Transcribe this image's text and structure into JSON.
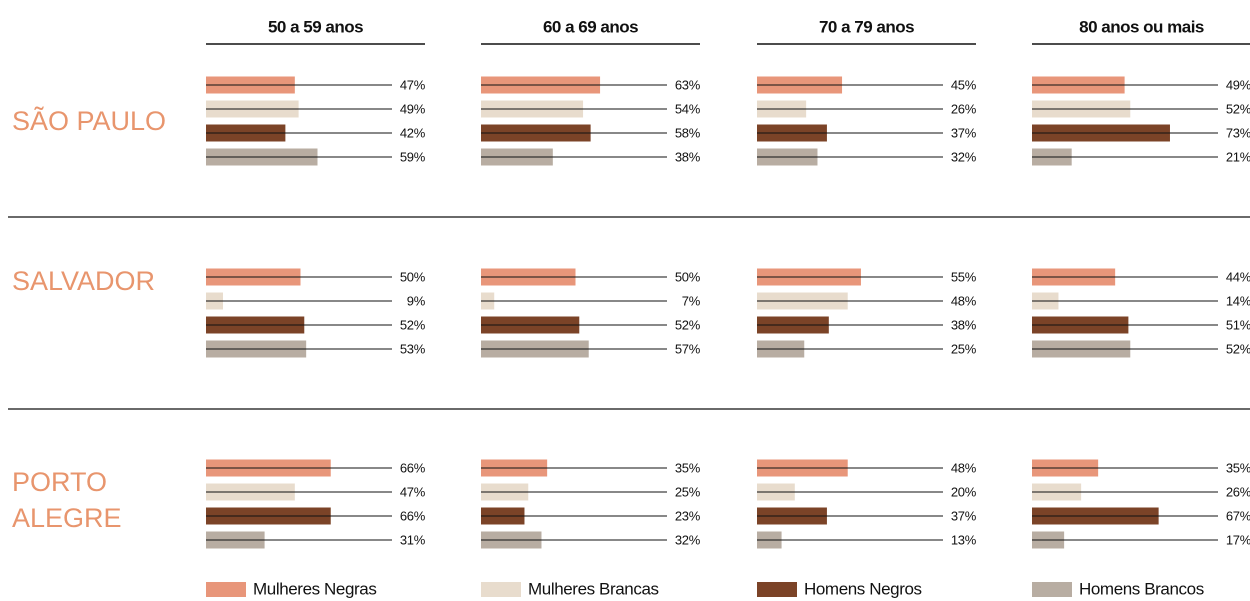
{
  "chart_data": {
    "type": "bar",
    "columns": [
      "50 a 59 anos",
      "60 a 69 anos",
      "70 a 79 anos",
      "80 anos ou mais"
    ],
    "series": [
      {
        "name": "Mulheres Negras",
        "color": "#e8967a"
      },
      {
        "name": "Mulheres Brancas",
        "color": "#e8dccd"
      },
      {
        "name": "Homens Negros",
        "color": "#7b4327"
      },
      {
        "name": "Homens Brancos",
        "color": "#b8ada2"
      }
    ],
    "cities": [
      {
        "name": "SÃO PAULO",
        "values": [
          [
            47,
            49,
            42,
            59
          ],
          [
            63,
            54,
            58,
            38
          ],
          [
            45,
            26,
            37,
            32
          ],
          [
            49,
            52,
            73,
            21
          ]
        ],
        "value_labels": [
          [
            "47%",
            "49%",
            "42%",
            "59%"
          ],
          [
            "63%",
            "54%",
            "58%",
            "38%"
          ],
          [
            "45%",
            "26%",
            "37%",
            "32%"
          ],
          [
            "49%",
            "52%",
            "73%",
            "21%"
          ]
        ]
      },
      {
        "name": "SALVADOR",
        "values": [
          [
            50,
            9,
            52,
            53
          ],
          [
            50,
            7,
            52,
            57
          ],
          [
            55,
            48,
            38,
            25
          ],
          [
            44,
            14,
            51,
            52
          ]
        ],
        "value_labels": [
          [
            "50%",
            "9%",
            "52%",
            "53%"
          ],
          [
            "50%",
            "7%",
            "52%",
            "57%"
          ],
          [
            "55%",
            "48%",
            "38%",
            "25%"
          ],
          [
            "44%",
            "14%",
            "51%",
            "52%"
          ]
        ]
      },
      {
        "name": "PORTO ALEGRE",
        "values": [
          [
            66,
            47,
            66,
            31
          ],
          [
            35,
            25,
            23,
            32
          ],
          [
            48,
            20,
            37,
            13
          ],
          [
            35,
            26,
            67,
            17
          ]
        ],
        "value_labels": [
          [
            "66%",
            "47%",
            "66%",
            "31%"
          ],
          [
            "35%",
            "25%",
            "23%",
            "32%"
          ],
          [
            "48%",
            "20%",
            "37%",
            "13%"
          ],
          [
            "35%",
            "26%",
            "67%",
            "17%"
          ]
        ]
      }
    ]
  }
}
